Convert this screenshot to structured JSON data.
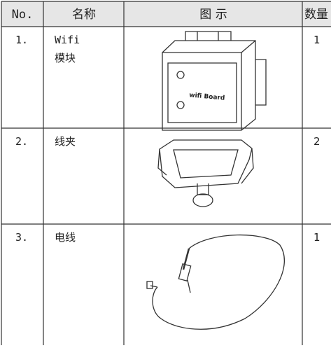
{
  "table": {
    "header": [
      "No.",
      "名称",
      "图 示",
      "数量"
    ],
    "rows": [
      {
        "no": "1.",
        "name": [
          "Wifi",
          "模块"
        ],
        "image_label": "wifi Board",
        "qty": "1"
      },
      {
        "no": "2.",
        "name": [
          "线夹"
        ],
        "qty": "2"
      },
      {
        "no": "3.",
        "name": [
          "电线"
        ],
        "qty": "1"
      }
    ]
  }
}
